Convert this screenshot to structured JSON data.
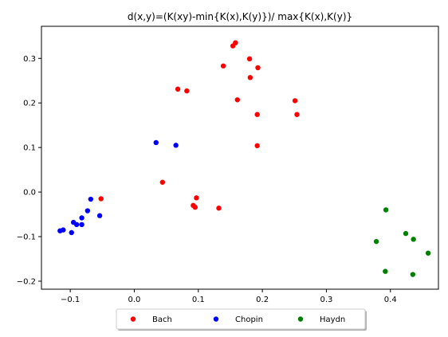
{
  "chart_data": {
    "type": "scatter",
    "title": "d(x,y)=(K(xy)-min{K(x),K(y)})/ max{K(x),K(y)}",
    "xlabel": "",
    "ylabel": "",
    "xlim": [
      -0.145,
      0.475
    ],
    "ylim": [
      -0.218,
      0.372
    ],
    "xticks": [
      -0.1,
      0.0,
      0.1,
      0.2,
      0.3,
      0.4
    ],
    "xtick_labels": [
      "−0.1",
      "0.0",
      "0.1",
      "0.2",
      "0.3",
      "0.4"
    ],
    "yticks": [
      -0.2,
      -0.1,
      0.0,
      0.1,
      0.2,
      0.3
    ],
    "ytick_labels": [
      "−0.2",
      "−0.1",
      "0.0",
      "0.1",
      "0.2",
      "0.3"
    ],
    "grid": false,
    "legend_position": "bottom-center-outside",
    "series": [
      {
        "name": "Bach",
        "color": "#ff0000",
        "points": [
          [
            0.158,
            0.335
          ],
          [
            0.154,
            0.328
          ],
          [
            0.139,
            0.283
          ],
          [
            0.18,
            0.299
          ],
          [
            0.193,
            0.279
          ],
          [
            0.181,
            0.257
          ],
          [
            0.068,
            0.231
          ],
          [
            0.082,
            0.227
          ],
          [
            0.161,
            0.207
          ],
          [
            0.251,
            0.205
          ],
          [
            0.192,
            0.174
          ],
          [
            0.254,
            0.174
          ],
          [
            0.192,
            0.104
          ],
          [
            0.044,
            0.022
          ],
          [
            -0.052,
            -0.015
          ],
          [
            0.097,
            -0.013
          ],
          [
            0.092,
            -0.03
          ],
          [
            0.095,
            -0.034
          ],
          [
            0.132,
            -0.036
          ]
        ]
      },
      {
        "name": "Chopin",
        "color": "#0000ff",
        "points": [
          [
            0.034,
            0.111
          ],
          [
            0.065,
            0.105
          ],
          [
            -0.068,
            -0.016
          ],
          [
            -0.073,
            -0.042
          ],
          [
            -0.054,
            -0.053
          ],
          [
            -0.082,
            -0.058
          ],
          [
            -0.095,
            -0.068
          ],
          [
            -0.09,
            -0.073
          ],
          [
            -0.082,
            -0.073
          ],
          [
            -0.111,
            -0.085
          ],
          [
            -0.116,
            -0.087
          ],
          [
            -0.098,
            -0.091
          ]
        ]
      },
      {
        "name": "Haydn",
        "color": "#008000",
        "points": [
          [
            0.393,
            -0.04
          ],
          [
            0.424,
            -0.093
          ],
          [
            0.436,
            -0.106
          ],
          [
            0.378,
            -0.111
          ],
          [
            0.459,
            -0.137
          ],
          [
            0.392,
            -0.178
          ],
          [
            0.435,
            -0.185
          ]
        ]
      }
    ]
  }
}
